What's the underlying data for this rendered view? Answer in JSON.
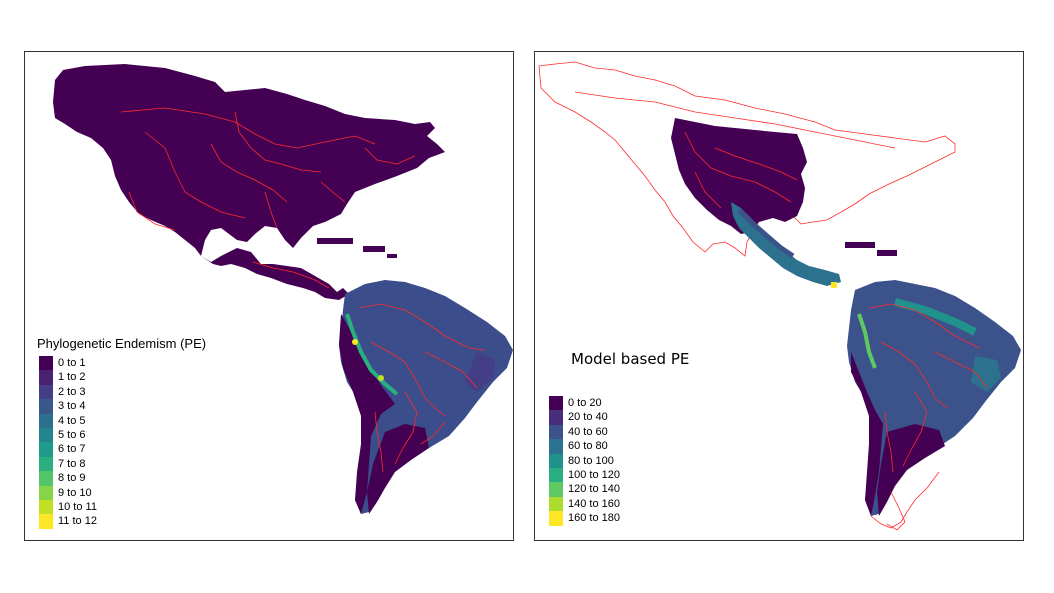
{
  "colors": {
    "land_dark": "#440154",
    "border": "#ff2a2a",
    "background": "#ffffff",
    "frame": "#333333"
  },
  "left_map": {
    "legend": {
      "title": "Phylogenetic Endemism (PE)",
      "items": [
        {
          "label": "0 to 1",
          "color": "#440154"
        },
        {
          "label": "1 to 2",
          "color": "#482173"
        },
        {
          "label": "2 to 3",
          "color": "#433e85"
        },
        {
          "label": "3 to 4",
          "color": "#38588c"
        },
        {
          "label": "4 to 5",
          "color": "#2d708e"
        },
        {
          "label": "5 to 6",
          "color": "#25858e"
        },
        {
          "label": "6 to 7",
          "color": "#1e9b8a"
        },
        {
          "label": "7 to 8",
          "color": "#2ab07f"
        },
        {
          "label": "8 to 9",
          "color": "#52c569"
        },
        {
          "label": "9 to 10",
          "color": "#86d549"
        },
        {
          "label": "10 to 11",
          "color": "#c2df23"
        },
        {
          "label": "11 to 12",
          "color": "#fde725"
        }
      ]
    }
  },
  "right_map": {
    "legend": {
      "title": "Model based PE",
      "items": [
        {
          "label": "0 to 20",
          "color": "#440154"
        },
        {
          "label": "20 to 40",
          "color": "#472d7b"
        },
        {
          "label": "40 to 60",
          "color": "#3b528b"
        },
        {
          "label": "60 to 80",
          "color": "#2c728e"
        },
        {
          "label": "80 to 100",
          "color": "#21918c"
        },
        {
          "label": "100 to 120",
          "color": "#28ae80"
        },
        {
          "label": "120 to 140",
          "color": "#5ec962"
        },
        {
          "label": "140 to 160",
          "color": "#addc30"
        },
        {
          "label": "160 to 180",
          "color": "#fde725"
        }
      ]
    }
  }
}
